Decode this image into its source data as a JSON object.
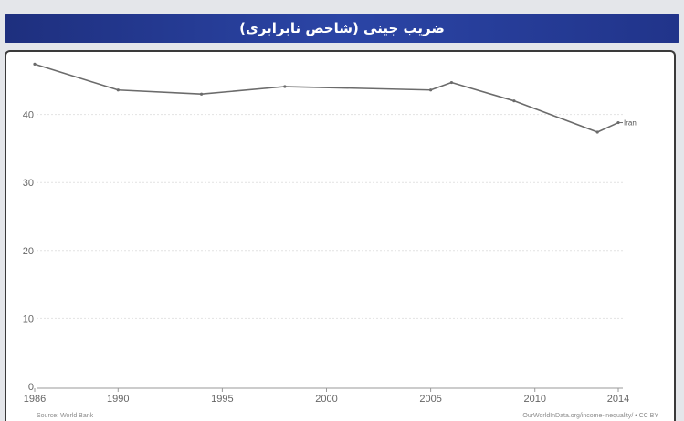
{
  "header": {
    "title": "ضریب جینی (شاخص نابرابری)"
  },
  "footer": {
    "source": "Source: World Bank",
    "credit": "OurWorldInData.org/income-inequality/ • CC BY"
  },
  "colors": {
    "title_bar": "#2b45a6",
    "line": "#6b6b6b",
    "grid": "#e2e2e2",
    "tick_text": "#666666"
  },
  "chart_data": {
    "type": "line",
    "title": "ضریب جینی (شاخص نابرابری)",
    "xlabel": "",
    "ylabel": "",
    "xlim": [
      1986,
      2014
    ],
    "ylim": [
      0,
      50
    ],
    "x_ticks": [
      1986,
      1990,
      1995,
      2000,
      2005,
      2010,
      2014
    ],
    "y_ticks": [
      0,
      10,
      20,
      30,
      40
    ],
    "grid": true,
    "series": [
      {
        "name": "Iran",
        "x": [
          1986,
          1990,
          1994,
          1998,
          2005,
          2006,
          2009,
          2013,
          2014
        ],
        "y": [
          47.4,
          43.6,
          43.0,
          44.1,
          43.6,
          44.7,
          42.0,
          37.4,
          38.8
        ]
      }
    ]
  }
}
